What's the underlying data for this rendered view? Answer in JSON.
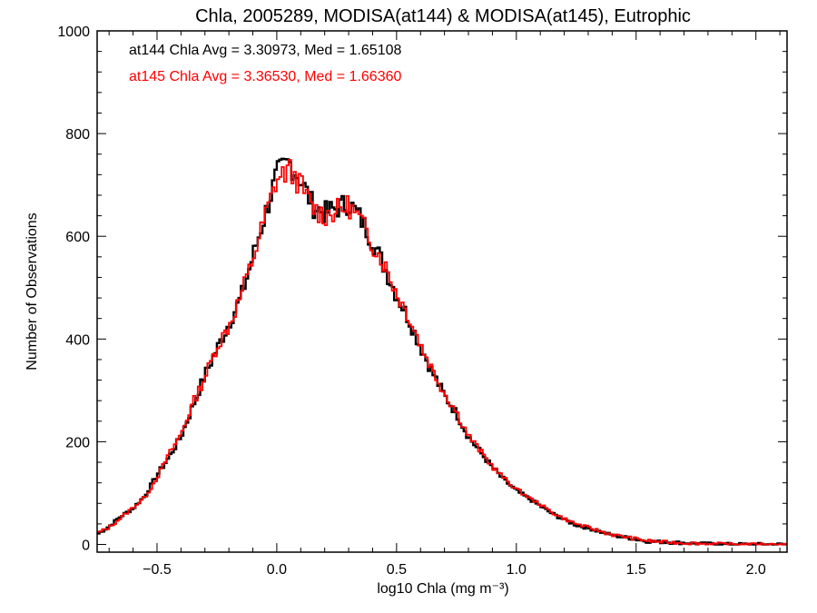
{
  "chart_data": {
    "type": "histogram-step",
    "title": "Chla, 2005289, MODISA(at144) & MODISA(at145), Eutrophic",
    "xlabel": "log10 Chla (mg m⁻³)",
    "ylabel": "Number of Observations",
    "xlim": [
      -0.75,
      2.13
    ],
    "ylim": [
      -15,
      1000
    ],
    "x_ticks": [
      -0.5,
      0.0,
      0.5,
      1.0,
      1.5,
      2.0
    ],
    "x_tick_labels": [
      "−0.5",
      "0.0",
      "0.5",
      "1.0",
      "1.5",
      "2.0"
    ],
    "y_ticks": [
      0,
      200,
      400,
      600,
      800,
      1000
    ],
    "y_tick_labels": [
      "0",
      "200",
      "400",
      "600",
      "800",
      "1000"
    ],
    "annotations": [
      {
        "text": "at144 Chla Avg = 3.30973, Med = 1.65108",
        "color": "#000000"
      },
      {
        "text": "at145 Chla Avg = 3.36530, Med = 1.66360",
        "color": "#ff0000"
      }
    ],
    "series": [
      {
        "color": "#000000",
        "x": [
          -0.75,
          -0.7,
          -0.65,
          -0.6,
          -0.55,
          -0.5,
          -0.45,
          -0.4,
          -0.35,
          -0.3,
          -0.25,
          -0.2,
          -0.15,
          -0.1,
          -0.05,
          0.0,
          0.05,
          0.1,
          0.15,
          0.2,
          0.25,
          0.3,
          0.35,
          0.4,
          0.45,
          0.5,
          0.55,
          0.6,
          0.65,
          0.7,
          0.75,
          0.8,
          0.85,
          0.9,
          0.95,
          1.0,
          1.05,
          1.1,
          1.15,
          1.2,
          1.25,
          1.3,
          1.35,
          1.4,
          1.45,
          1.5,
          1.55,
          1.6,
          1.65,
          1.7,
          1.75,
          1.8,
          1.85,
          1.9,
          1.95,
          2.0,
          2.05,
          2.1
        ],
        "y": [
          20,
          35,
          55,
          70,
          95,
          135,
          170,
          210,
          270,
          330,
          380,
          430,
          480,
          560,
          640,
          720,
          745,
          710,
          660,
          645,
          655,
          665,
          635,
          590,
          540,
          485,
          440,
          385,
          335,
          290,
          255,
          210,
          180,
          150,
          125,
          105,
          90,
          75,
          60,
          48,
          38,
          32,
          25,
          18,
          14,
          10,
          6,
          5,
          4,
          3,
          2,
          1,
          1,
          0,
          0,
          0,
          0,
          0
        ]
      },
      {
        "color": "#ff0000",
        "x": [
          -0.75,
          -0.7,
          -0.65,
          -0.6,
          -0.55,
          -0.5,
          -0.45,
          -0.4,
          -0.35,
          -0.3,
          -0.25,
          -0.2,
          -0.15,
          -0.1,
          -0.05,
          0.0,
          0.05,
          0.1,
          0.15,
          0.2,
          0.25,
          0.3,
          0.35,
          0.4,
          0.45,
          0.5,
          0.55,
          0.6,
          0.65,
          0.7,
          0.75,
          0.8,
          0.85,
          0.9,
          0.95,
          1.0,
          1.05,
          1.1,
          1.15,
          1.2,
          1.25,
          1.3,
          1.35,
          1.4,
          1.45,
          1.5,
          1.55,
          1.6,
          1.65,
          1.7,
          1.75,
          1.8,
          1.85,
          1.9,
          1.95,
          2.0,
          2.05,
          2.1
        ],
        "y": [
          22,
          33,
          52,
          72,
          92,
          130,
          175,
          215,
          275,
          325,
          385,
          425,
          485,
          555,
          635,
          710,
          730,
          700,
          655,
          640,
          650,
          660,
          630,
          585,
          545,
          490,
          445,
          390,
          340,
          295,
          258,
          212,
          182,
          152,
          128,
          108,
          92,
          78,
          62,
          50,
          40,
          33,
          26,
          19,
          15,
          11,
          7,
          5,
          4,
          3,
          2,
          1,
          1,
          0,
          0,
          0,
          0,
          0
        ]
      }
    ]
  }
}
